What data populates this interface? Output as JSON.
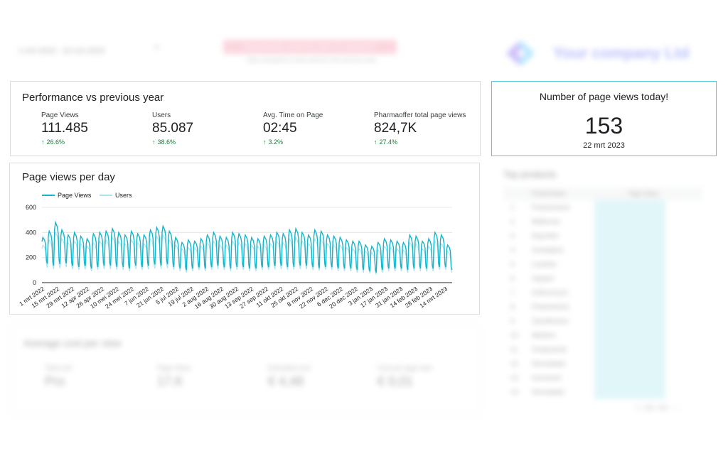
{
  "header": {
    "date_range": "1 mrt 2022 - 22 mrt 2023",
    "banner_text": "DASHBOARD UPDATES DAILY AT MIDNIGHT",
    "banner_sub": "Data compared to same period in the previous year",
    "brand_name": "Your company Ltd"
  },
  "performance": {
    "title": "Performance vs previous year",
    "metrics": [
      {
        "label": "Page Views",
        "value": "111.485",
        "change": "26.6%"
      },
      {
        "label": "Users",
        "value": "85.087",
        "change": "38.6%"
      },
      {
        "label": "Avg. Time on Page",
        "value": "02:45",
        "change": "3.2%"
      },
      {
        "label": "Pharmaoffer total page views",
        "value": "824,7K",
        "change": "27.4%"
      }
    ]
  },
  "today": {
    "title": "Number of page views today!",
    "value": "153",
    "date": "22 mrt 2023"
  },
  "per_day": {
    "title": "Page views per day",
    "legend": [
      {
        "name": "Page Views",
        "color": "#12b5cb"
      },
      {
        "name": "Users",
        "color": "#a8e4ee"
      }
    ]
  },
  "blurred": {
    "top_products_title": "Top products",
    "table_col1": "Productnaam",
    "table_col2": "Page Views",
    "bottom_title": "Average cost per view",
    "bottom_metrics": [
      {
        "label": "Total cost",
        "value": "Pro"
      },
      {
        "label": "Page Views",
        "value": "17.K"
      },
      {
        "label": "Estimated cost",
        "value": "€ 4,48"
      },
      {
        "label": "Cost per page view",
        "value": "€ 0,01"
      }
    ]
  },
  "chart_data": {
    "type": "line",
    "title": "Page views per day",
    "ylim": [
      0,
      600
    ],
    "yticks": [
      0,
      200,
      400,
      600
    ],
    "xticks": [
      "1 mrt 2022",
      "15 mrt 2022",
      "29 mrt 2022",
      "12 apr 2022",
      "26 apr 2022",
      "10 mei 2022",
      "24 mei 2022",
      "7 jun 2022",
      "21 jun 2022",
      "5 jul 2022",
      "19 jul 2022",
      "2 aug 2022",
      "16 aug 2022",
      "30 aug 2022",
      "13 sep 2022",
      "27 sep 2022",
      "11 okt 2022",
      "25 okt 2022",
      "8 nov 2022",
      "22 nov 2022",
      "6 dec 2022",
      "20 dec 2022",
      "3 jan 2023",
      "17 jan 2023",
      "31 jan 2023",
      "14 feb 2023",
      "28 feb 2023",
      "14 mrt 2023"
    ],
    "grid": true,
    "legend_position": "top-left",
    "series": [
      {
        "name": "Page Views",
        "color": "#12b5cb",
        "weekly_peaks": [
          360,
          410,
          480,
          420,
          380,
          400,
          370,
          350,
          390,
          400,
          410,
          430,
          400,
          380,
          410,
          390,
          380,
          420,
          440,
          450,
          410,
          360,
          320,
          340,
          330,
          350,
          380,
          400,
          370,
          360,
          400,
          390,
          380,
          360,
          350,
          370,
          380,
          400,
          390,
          420,
          430,
          400,
          380,
          420,
          410,
          380,
          370,
          360,
          340,
          330,
          330,
          300,
          290,
          320,
          350,
          340,
          330,
          320,
          380,
          370,
          330,
          350,
          400,
          380,
          300
        ],
        "weekly_lows": [
          140,
          120,
          130,
          140,
          120,
          110,
          120,
          100,
          110,
          120,
          120,
          110,
          110,
          100,
          120,
          110,
          120,
          130,
          120,
          130,
          110,
          100,
          90,
          100,
          110,
          100,
          110,
          120,
          110,
          100,
          110,
          110,
          100,
          100,
          110,
          110,
          120,
          120,
          110,
          110,
          120,
          120,
          110,
          100,
          110,
          110,
          100,
          100,
          100,
          90,
          90,
          80,
          70,
          90,
          100,
          100,
          100,
          90,
          100,
          100,
          100,
          100,
          110,
          110,
          90
        ]
      },
      {
        "name": "Users",
        "color": "#a8e4ee",
        "weekly_peaks": [
          300,
          340,
          400,
          350,
          320,
          330,
          310,
          290,
          320,
          330,
          340,
          360,
          330,
          310,
          340,
          320,
          310,
          350,
          370,
          380,
          340,
          300,
          270,
          280,
          280,
          290,
          320,
          330,
          300,
          300,
          330,
          320,
          310,
          300,
          290,
          300,
          310,
          330,
          320,
          350,
          360,
          330,
          310,
          350,
          340,
          310,
          300,
          300,
          280,
          270,
          270,
          250,
          240,
          260,
          290,
          280,
          270,
          260,
          320,
          310,
          270,
          290,
          330,
          310,
          250
        ],
        "weekly_lows": [
          110,
          95,
          100,
          110,
          95,
          90,
          95,
          80,
          90,
          95,
          95,
          90,
          90,
          80,
          95,
          90,
          95,
          100,
          95,
          100,
          90,
          80,
          70,
          80,
          90,
          80,
          90,
          95,
          90,
          80,
          90,
          90,
          80,
          80,
          90,
          90,
          95,
          95,
          90,
          90,
          95,
          95,
          90,
          80,
          90,
          90,
          80,
          80,
          80,
          70,
          70,
          65,
          55,
          70,
          80,
          80,
          80,
          70,
          80,
          80,
          80,
          80,
          90,
          90,
          70
        ]
      }
    ]
  }
}
